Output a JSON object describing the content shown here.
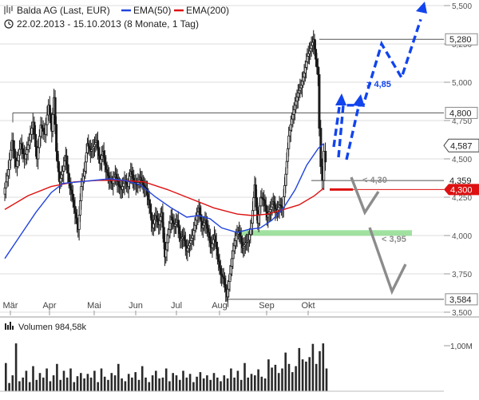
{
  "header": {
    "title": "Balda AG (Last, EUR)",
    "legend_ema50": "EMA(50)",
    "legend_ema200": "EMA(200)",
    "period": "22.02.2013 - 15.10.2013 (8 Monate, 1 Tag)",
    "volume_label": "Volumen  984,58k"
  },
  "colors": {
    "price": "#1a1a1a",
    "ema50": "#2244dd",
    "ema200": "#dd1111",
    "projection_up": "#1144ee",
    "projection_down": "#8c8c8c",
    "support_zone": "#8fdc8f",
    "level_badge_red": "#dd1111",
    "grid": "#dcdcdc"
  },
  "chart_data": [
    {
      "type": "candlestick",
      "title": "Balda AG (Last, EUR)",
      "ylim": [
        3.5,
        5.5
      ],
      "y_ticks": [
        {
          "value": 3.5,
          "label": "3,500"
        },
        {
          "value": 3.75,
          "label": "3,750"
        },
        {
          "value": 4.0,
          "label": "4,000"
        },
        {
          "value": 4.25,
          "label": "4,250"
        },
        {
          "value": 4.5,
          "label": "4,500"
        },
        {
          "value": 4.75,
          "label": "4,750"
        },
        {
          "value": 5.0,
          "label": "5,000"
        },
        {
          "value": 5.25,
          "label": "5,250"
        },
        {
          "value": 5.5,
          "label": "5,500"
        }
      ],
      "x_ticks": [
        "Mär",
        "Apr",
        "Mai",
        "Jun",
        "Jul",
        "Aug",
        "Sep",
        "Okt"
      ],
      "price_path": [
        [
          0,
          4.27
        ],
        [
          6,
          4.43
        ],
        [
          11,
          4.62
        ],
        [
          16,
          4.45
        ],
        [
          22,
          4.6
        ],
        [
          27,
          4.5
        ],
        [
          33,
          4.62
        ],
        [
          38,
          4.74
        ],
        [
          43,
          4.5
        ],
        [
          48,
          4.72
        ],
        [
          53,
          4.66
        ],
        [
          58,
          4.85
        ],
        [
          62,
          4.68
        ],
        [
          65,
          4.9
        ],
        [
          68,
          4.55
        ],
        [
          72,
          4.35
        ],
        [
          76,
          4.42
        ],
        [
          80,
          4.52
        ],
        [
          84,
          4.35
        ],
        [
          88,
          4.27
        ],
        [
          92,
          4.15
        ],
        [
          96,
          4.04
        ],
        [
          100,
          4.32
        ],
        [
          104,
          4.42
        ],
        [
          108,
          4.6
        ],
        [
          112,
          4.55
        ],
        [
          116,
          4.58
        ],
        [
          120,
          4.62
        ],
        [
          124,
          4.47
        ],
        [
          128,
          4.55
        ],
        [
          132,
          4.43
        ],
        [
          136,
          4.37
        ],
        [
          140,
          4.34
        ],
        [
          144,
          4.4
        ],
        [
          148,
          4.33
        ],
        [
          152,
          4.3
        ],
        [
          156,
          4.36
        ],
        [
          160,
          4.32
        ],
        [
          164,
          4.42
        ],
        [
          168,
          4.35
        ],
        [
          172,
          4.33
        ],
        [
          176,
          4.38
        ],
        [
          180,
          4.33
        ],
        [
          184,
          4.3
        ],
        [
          188,
          4.2
        ],
        [
          192,
          4.05
        ],
        [
          196,
          4.13
        ],
        [
          200,
          4.07
        ],
        [
          204,
          4.15
        ],
        [
          208,
          3.86
        ],
        [
          212,
          4.0
        ],
        [
          216,
          4.12
        ],
        [
          220,
          4.06
        ],
        [
          224,
          4.1
        ],
        [
          228,
          3.97
        ],
        [
          232,
          4.0
        ],
        [
          236,
          3.9
        ],
        [
          240,
          3.95
        ],
        [
          244,
          4.0
        ],
        [
          248,
          4.1
        ],
        [
          252,
          4.18
        ],
        [
          256,
          4.05
        ],
        [
          260,
          4.1
        ],
        [
          264,
          4.02
        ],
        [
          268,
          3.92
        ],
        [
          272,
          4.0
        ],
        [
          276,
          3.87
        ],
        [
          280,
          3.75
        ],
        [
          284,
          3.72
        ],
        [
          288,
          3.6
        ],
        [
          292,
          3.75
        ],
        [
          296,
          3.9
        ],
        [
          300,
          4.0
        ],
        [
          304,
          4.03
        ],
        [
          308,
          3.92
        ],
        [
          312,
          3.95
        ],
        [
          316,
          3.97
        ],
        [
          320,
          4.08
        ],
        [
          324,
          4.33
        ],
        [
          328,
          4.08
        ],
        [
          332,
          4.25
        ],
        [
          336,
          4.23
        ],
        [
          340,
          4.12
        ],
        [
          344,
          4.17
        ],
        [
          348,
          4.22
        ],
        [
          352,
          4.15
        ],
        [
          356,
          4.2
        ],
        [
          360,
          4.18
        ],
        [
          364,
          4.4
        ],
        [
          368,
          4.65
        ],
        [
          372,
          4.76
        ],
        [
          376,
          4.85
        ],
        [
          380,
          4.93
        ],
        [
          384,
          4.98
        ],
        [
          388,
          5.06
        ],
        [
          392,
          5.17
        ],
        [
          396,
          5.22
        ],
        [
          400,
          5.28
        ],
        [
          403,
          5.15
        ],
        [
          406,
          5.05
        ],
        [
          408,
          4.7
        ],
        [
          410,
          4.45
        ],
        [
          412,
          4.36
        ],
        [
          414,
          4.55
        ],
        [
          416,
          4.48
        ]
      ],
      "ema200_path": [
        [
          0,
          4.17
        ],
        [
          30,
          4.26
        ],
        [
          60,
          4.32
        ],
        [
          90,
          4.35
        ],
        [
          120,
          4.36
        ],
        [
          150,
          4.36
        ],
        [
          180,
          4.35
        ],
        [
          210,
          4.3
        ],
        [
          240,
          4.24
        ],
        [
          270,
          4.18
        ],
        [
          300,
          4.14
        ],
        [
          320,
          4.13
        ],
        [
          340,
          4.14
        ],
        [
          360,
          4.17
        ],
        [
          380,
          4.2
        ],
        [
          400,
          4.26
        ],
        [
          412,
          4.31
        ]
      ],
      "ema50_path": [
        [
          0,
          3.85
        ],
        [
          20,
          4.0
        ],
        [
          40,
          4.15
        ],
        [
          60,
          4.28
        ],
        [
          75,
          4.34
        ],
        [
          95,
          4.35
        ],
        [
          115,
          4.36
        ],
        [
          135,
          4.37
        ],
        [
          155,
          4.36
        ],
        [
          175,
          4.33
        ],
        [
          195,
          4.25
        ],
        [
          215,
          4.18
        ],
        [
          235,
          4.12
        ],
        [
          250,
          4.13
        ],
        [
          265,
          4.11
        ],
        [
          280,
          4.05
        ],
        [
          300,
          4.02
        ],
        [
          315,
          4.04
        ],
        [
          330,
          4.05
        ],
        [
          345,
          4.1
        ],
        [
          360,
          4.18
        ],
        [
          375,
          4.3
        ],
        [
          390,
          4.46
        ],
        [
          405,
          4.57
        ],
        [
          412,
          4.6
        ]
      ],
      "reference_levels": [
        {
          "value": 5.28,
          "label": "5,280",
          "style": "boxed"
        },
        {
          "value": 4.8,
          "label": "4,800",
          "style": "boxed"
        },
        {
          "value": 4.587,
          "label": "4,587",
          "style": "current"
        },
        {
          "value": 4.359,
          "label": "4,359",
          "style": "plain"
        },
        {
          "value": 4.3,
          "label": "4,300",
          "style": "red"
        },
        {
          "value": 3.584,
          "label": "3,584",
          "style": "boxed"
        }
      ],
      "annotations": [
        {
          "text": "> 4,85",
          "color": "#1144ee"
        },
        {
          "text": "< 4,30",
          "color": "#8c8c8c"
        },
        {
          "text": "< 3,95",
          "color": "#8c8c8c"
        }
      ]
    },
    {
      "type": "bar",
      "title": "Volumen  984,58k",
      "y_ticks": [
        {
          "value": 1.0,
          "label": "1,00M"
        }
      ],
      "ylim": [
        0,
        1.3
      ],
      "values": [
        0.62,
        0.18,
        0.35,
        1.05,
        0.22,
        0.3,
        0.45,
        0.2,
        0.55,
        0.25,
        0.4,
        0.3,
        0.5,
        0.22,
        0.35,
        0.6,
        0.25,
        0.45,
        0.3,
        0.5,
        0.2,
        0.33,
        0.4,
        0.28,
        0.38,
        0.3,
        0.45,
        0.2,
        0.5,
        0.32,
        0.25,
        0.4,
        0.35,
        0.6,
        0.28,
        0.22,
        0.38,
        0.3,
        0.42,
        0.25,
        0.55,
        0.3,
        0.2,
        0.35,
        0.45,
        0.28,
        0.3,
        0.5,
        0.22,
        0.4,
        0.35,
        0.25,
        0.45,
        0.3,
        0.38,
        0.2,
        0.32,
        0.42,
        0.28,
        0.35,
        0.25,
        0.4,
        0.3,
        0.22,
        0.35,
        0.28,
        0.5,
        0.3,
        0.45,
        0.25,
        0.62,
        0.3,
        0.38,
        0.35,
        0.48,
        0.32,
        0.28,
        0.7,
        0.52,
        0.58,
        0.4,
        0.5,
        0.85,
        0.6,
        0.42,
        0.55,
        0.95,
        0.7,
        0.65,
        0.75,
        1.04,
        0.6,
        0.88,
        1.05,
        0.5
      ]
    }
  ]
}
